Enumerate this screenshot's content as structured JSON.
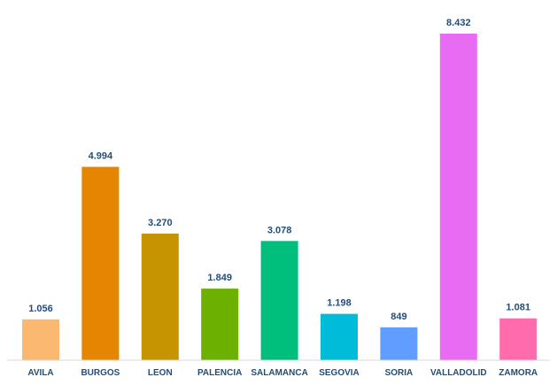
{
  "chart_data": {
    "type": "bar",
    "title": "",
    "xlabel": "",
    "ylabel": "",
    "ylim": [
      0,
      8432
    ],
    "grid": false,
    "legend": "none",
    "categories": [
      "AVILA",
      "BURGOS",
      "LEON",
      "PALENCIA",
      "SALAMANCA",
      "SEGOVIA",
      "SORIA",
      "VALLADOLID",
      "ZAMORA"
    ],
    "values": [
      1056,
      4994,
      3270,
      1849,
      3078,
      1198,
      849,
      8432,
      1081
    ],
    "value_labels": [
      "1.056",
      "4.994",
      "3.270",
      "1.849",
      "3.078",
      "1.198",
      "849",
      "8.432",
      "1.081"
    ],
    "colors": [
      "#FBB871",
      "#E58603",
      "#C69400",
      "#6CB000",
      "#00BE7B",
      "#00BCD8",
      "#619CFF",
      "#E76BF3",
      "#FF6BAC"
    ],
    "value_label_color": "#1F4E79",
    "category_label_color": "#1F4E79",
    "baseline_color": "#D9D9D9"
  }
}
